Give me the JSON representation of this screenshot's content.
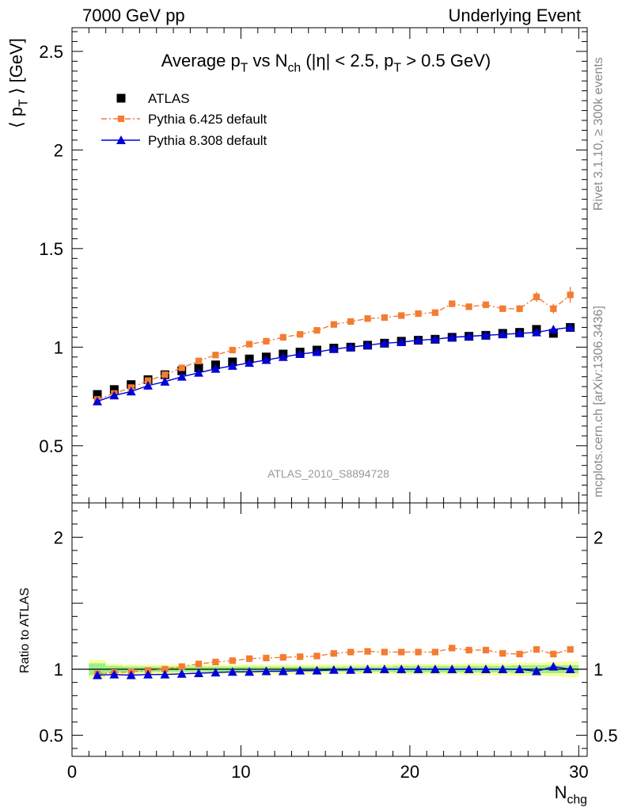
{
  "header": {
    "left": "7000 GeV pp",
    "right": "Underlying Event"
  },
  "side_labels": {
    "rivet": "Rivet 3.1.10, ≥ 300k events",
    "mcplots": "mcplots.cern.ch [arXiv:1306.3436]"
  },
  "chart_data": [
    {
      "type": "scatter",
      "panel": "main",
      "title": {
        "parts": [
          "Average p",
          "T",
          " vs N",
          "ch",
          " (|η| < 2.5, p",
          "T",
          " > 0.5 GeV)"
        ]
      },
      "ylabel": {
        "parts": [
          "⟨ p",
          "T",
          " ⟩ [GeV]"
        ]
      },
      "watermark": "ATLAS_2010_S8894728",
      "xlim": [
        0,
        30.5
      ],
      "ylim": [
        0.21,
        2.62
      ],
      "yticks_labeled": [
        {
          "v": 0.5,
          "label": "0.5"
        },
        {
          "v": 1,
          "label": "1"
        },
        {
          "v": 1.5,
          "label": "1.5"
        },
        {
          "v": 2,
          "label": "2"
        },
        {
          "v": 2.5,
          "label": "2.5"
        }
      ],
      "legend_position": "top-left",
      "series": [
        {
          "name": "ATLAS",
          "style": "data",
          "color": "#000000",
          "x": [
            1.5,
            2.5,
            3.5,
            4.5,
            5.5,
            6.5,
            7.5,
            8.5,
            9.5,
            10.5,
            11.5,
            12.5,
            13.5,
            14.5,
            15.5,
            16.5,
            17.5,
            18.5,
            19.5,
            20.5,
            21.5,
            22.5,
            23.5,
            24.5,
            25.5,
            26.5,
            27.5,
            28.5,
            29.5
          ],
          "y": [
            0.76,
            0.785,
            0.81,
            0.835,
            0.86,
            0.88,
            0.895,
            0.91,
            0.925,
            0.94,
            0.95,
            0.965,
            0.975,
            0.985,
            0.995,
            1.0,
            1.01,
            1.02,
            1.03,
            1.035,
            1.04,
            1.05,
            1.055,
            1.06,
            1.07,
            1.075,
            1.09,
            1.07,
            1.1
          ]
        },
        {
          "name": "Pythia 6.425 default",
          "style": "dashdot",
          "color": "#f47c32",
          "x": [
            1.5,
            2.5,
            3.5,
            4.5,
            5.5,
            6.5,
            7.5,
            8.5,
            9.5,
            10.5,
            11.5,
            12.5,
            13.5,
            14.5,
            15.5,
            16.5,
            17.5,
            18.5,
            19.5,
            20.5,
            21.5,
            22.5,
            23.5,
            24.5,
            25.5,
            26.5,
            27.5,
            28.5,
            29.5
          ],
          "y": [
            0.735,
            0.765,
            0.795,
            0.83,
            0.86,
            0.895,
            0.93,
            0.96,
            0.985,
            1.015,
            1.03,
            1.05,
            1.065,
            1.085,
            1.115,
            1.13,
            1.145,
            1.15,
            1.16,
            1.17,
            1.175,
            1.22,
            1.205,
            1.215,
            1.195,
            1.195,
            1.255,
            1.195,
            1.265
          ],
          "yerr": [
            0,
            0,
            0,
            0,
            0,
            0,
            0,
            0,
            0,
            0,
            0,
            0,
            0,
            0,
            0,
            0,
            0,
            0,
            0,
            0,
            0,
            0,
            0.012,
            0.012,
            0.015,
            0.018,
            0.025,
            0.025,
            0.04
          ]
        },
        {
          "name": "Pythia 8.308 default",
          "style": "solid",
          "color": "#0000d8",
          "x": [
            1.5,
            2.5,
            3.5,
            4.5,
            5.5,
            6.5,
            7.5,
            8.5,
            9.5,
            10.5,
            11.5,
            12.5,
            13.5,
            14.5,
            15.5,
            16.5,
            17.5,
            18.5,
            19.5,
            20.5,
            21.5,
            22.5,
            23.5,
            24.5,
            25.5,
            26.5,
            27.5,
            28.5,
            29.5
          ],
          "y": [
            0.725,
            0.755,
            0.775,
            0.805,
            0.825,
            0.85,
            0.87,
            0.89,
            0.905,
            0.92,
            0.935,
            0.95,
            0.965,
            0.975,
            0.99,
            1.0,
            1.01,
            1.02,
            1.025,
            1.035,
            1.04,
            1.05,
            1.055,
            1.06,
            1.065,
            1.07,
            1.075,
            1.09,
            1.1
          ]
        }
      ]
    },
    {
      "type": "scatter",
      "panel": "ratio",
      "ylabel": "Ratio to ATLAS",
      "xlabel": {
        "parts": [
          "N",
          "chg"
        ]
      },
      "xlim": [
        0,
        30.5
      ],
      "ylim": [
        0.34,
        2.26
      ],
      "xticks_labeled": [
        {
          "v": 0,
          "label": "0"
        },
        {
          "v": 10,
          "label": "10"
        },
        {
          "v": 20,
          "label": "20"
        },
        {
          "v": 30,
          "label": "30"
        }
      ],
      "yticks_labeled": [
        {
          "v": 0.5,
          "label": "0.5"
        },
        {
          "v": 1,
          "label": "1"
        },
        {
          "v": 2,
          "label": "2"
        }
      ],
      "bands": {
        "outer_color": "#f6ff9a",
        "inner_color": "#9cef8c",
        "x": [
          1.5,
          2.5,
          3.5,
          4.5,
          5.5,
          6.5,
          7.5,
          8.5,
          9.5,
          10.5,
          11.5,
          12.5,
          13.5,
          14.5,
          15.5,
          16.5,
          17.5,
          18.5,
          19.5,
          20.5,
          21.5,
          22.5,
          23.5,
          24.5,
          25.5,
          26.5,
          27.5,
          28.5,
          29.5
        ],
        "outer": [
          0.07,
          0.04,
          0.035,
          0.035,
          0.035,
          0.035,
          0.035,
          0.035,
          0.035,
          0.035,
          0.035,
          0.035,
          0.035,
          0.035,
          0.035,
          0.035,
          0.035,
          0.035,
          0.04,
          0.04,
          0.04,
          0.04,
          0.045,
          0.045,
          0.045,
          0.05,
          0.05,
          0.055,
          0.06
        ],
        "inner": [
          0.045,
          0.025,
          0.02,
          0.02,
          0.02,
          0.02,
          0.02,
          0.02,
          0.02,
          0.02,
          0.02,
          0.02,
          0.02,
          0.02,
          0.02,
          0.02,
          0.02,
          0.02,
          0.025,
          0.025,
          0.025,
          0.025,
          0.025,
          0.025,
          0.025,
          0.03,
          0.03,
          0.03,
          0.03
        ]
      },
      "series": [
        {
          "name": "Pythia 6.425 default",
          "style": "dashdot",
          "color": "#f47c32",
          "x": [
            1.5,
            2.5,
            3.5,
            4.5,
            5.5,
            6.5,
            7.5,
            8.5,
            9.5,
            10.5,
            11.5,
            12.5,
            13.5,
            14.5,
            15.5,
            16.5,
            17.5,
            18.5,
            19.5,
            20.5,
            21.5,
            22.5,
            23.5,
            24.5,
            25.5,
            26.5,
            27.5,
            28.5,
            29.5
          ],
          "y": [
            0.965,
            0.975,
            0.98,
            0.99,
            1.0,
            1.02,
            1.04,
            1.055,
            1.065,
            1.08,
            1.085,
            1.09,
            1.095,
            1.1,
            1.12,
            1.13,
            1.135,
            1.13,
            1.13,
            1.13,
            1.13,
            1.16,
            1.145,
            1.145,
            1.12,
            1.115,
            1.15,
            1.115,
            1.15
          ]
        },
        {
          "name": "Pythia 8.308 default",
          "style": "solid",
          "color": "#0000d8",
          "x": [
            1.5,
            2.5,
            3.5,
            4.5,
            5.5,
            6.5,
            7.5,
            8.5,
            9.5,
            10.5,
            11.5,
            12.5,
            13.5,
            14.5,
            15.5,
            16.5,
            17.5,
            18.5,
            19.5,
            20.5,
            21.5,
            22.5,
            23.5,
            24.5,
            25.5,
            26.5,
            27.5,
            28.5,
            29.5
          ],
          "y": [
            0.955,
            0.96,
            0.955,
            0.96,
            0.96,
            0.965,
            0.97,
            0.975,
            0.98,
            0.98,
            0.985,
            0.985,
            0.99,
            0.99,
            0.995,
            0.995,
            1.0,
            1.0,
            1.0,
            1.0,
            1.0,
            1.0,
            1.0,
            1.0,
            1.0,
            1.0,
            0.985,
            1.02,
            1.0
          ]
        }
      ]
    }
  ]
}
